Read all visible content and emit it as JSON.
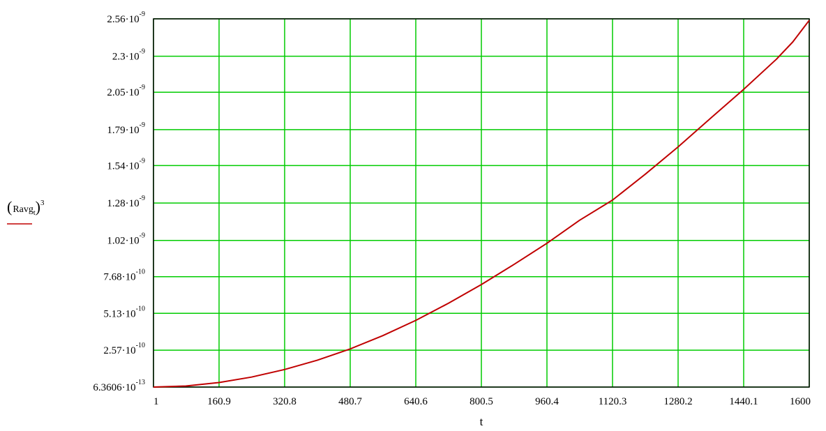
{
  "chart_data": {
    "type": "line",
    "xlabel": "t",
    "ylabel": {
      "open": "(",
      "base": "Ravg",
      "subscript": "t",
      "close": ")",
      "power": "3"
    },
    "xlim": [
      1,
      1600
    ],
    "ylim": [
      6.3606e-13,
      2.56e-09
    ],
    "grid": true,
    "legend": "left, below y-axis label",
    "x_ticks": [
      {
        "value": 1,
        "label": "1"
      },
      {
        "value": 160.9,
        "label": "160.9"
      },
      {
        "value": 320.8,
        "label": "320.8"
      },
      {
        "value": 480.7,
        "label": "480.7"
      },
      {
        "value": 640.6,
        "label": "640.6"
      },
      {
        "value": 800.5,
        "label": "800.5"
      },
      {
        "value": 960.4,
        "label": "960.4"
      },
      {
        "value": 1120.3,
        "label": "1120.3"
      },
      {
        "value": 1280.2,
        "label": "1280.2"
      },
      {
        "value": 1440.1,
        "label": "1440.1"
      },
      {
        "value": 1600,
        "label": "1600"
      }
    ],
    "y_ticks": [
      {
        "value": 6.3606e-13,
        "mantissa": "6.3606",
        "exponent": "-13"
      },
      {
        "value": 2.57e-10,
        "mantissa": "2.57",
        "exponent": "-10"
      },
      {
        "value": 5.13e-10,
        "mantissa": "5.13",
        "exponent": "-10"
      },
      {
        "value": 7.68e-10,
        "mantissa": "7.68",
        "exponent": "-10"
      },
      {
        "value": 1.02e-09,
        "mantissa": "1.02",
        "exponent": "-9"
      },
      {
        "value": 1.28e-09,
        "mantissa": "1.28",
        "exponent": "-9"
      },
      {
        "value": 1.54e-09,
        "mantissa": "1.54",
        "exponent": "-9"
      },
      {
        "value": 1.79e-09,
        "mantissa": "1.79",
        "exponent": "-9"
      },
      {
        "value": 2.05e-09,
        "mantissa": "2.05",
        "exponent": "-9"
      },
      {
        "value": 2.3e-09,
        "mantissa": "2.3",
        "exponent": "-9"
      },
      {
        "value": 2.56e-09,
        "mantissa": "2.56",
        "exponent": "-9"
      }
    ],
    "series": [
      {
        "color": "#c00000",
        "x": [
          1,
          80,
          160.9,
          240,
          320.8,
          400,
          480.7,
          560,
          640.6,
          720,
          800.5,
          880,
          960.4,
          1040,
          1120.3,
          1200,
          1280.2,
          1360,
          1440.1,
          1520,
          1560,
          1600
        ],
        "y": [
          6.3606e-13,
          8e-12,
          3.2e-11,
          7e-11,
          1.23e-10,
          1.87e-10,
          2.66e-10,
          3.58e-10,
          4.64e-10,
          5.83e-10,
          7.13e-10,
          8.53e-10,
          1e-09,
          1.16e-09,
          1.3e-09,
          1.48e-09,
          1.67e-09,
          1.87e-09,
          2.07e-09,
          2.28e-09,
          2.4e-09,
          2.55e-09
        ]
      }
    ]
  },
  "colors": {
    "grid": "#00cc00",
    "axis": "#000000",
    "series": "#c00000",
    "background": "#ffffff"
  }
}
